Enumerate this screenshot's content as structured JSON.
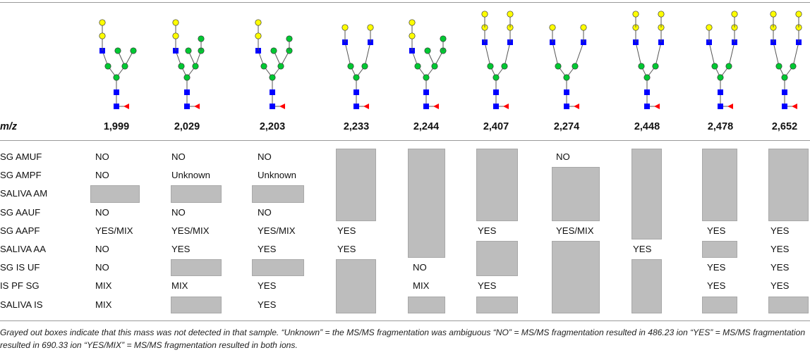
{
  "columns": [
    {
      "mz": "1,999",
      "glycan": "glycan-1999"
    },
    {
      "mz": "2,029",
      "glycan": "glycan-2029"
    },
    {
      "mz": "2,203",
      "glycan": "glycan-2203"
    },
    {
      "mz": "2,233",
      "glycan": "glycan-2233"
    },
    {
      "mz": "2,244",
      "glycan": "glycan-2244"
    },
    {
      "mz": "2,407",
      "glycan": "glycan-2407"
    },
    {
      "mz": "2,274",
      "glycan": "glycan-2274"
    },
    {
      "mz": "2,448",
      "glycan": "glycan-2448"
    },
    {
      "mz": "2,478",
      "glycan": "glycan-2478"
    },
    {
      "mz": "2,652",
      "glycan": "glycan-2652"
    }
  ],
  "header": {
    "mz_label": "m/z"
  },
  "rows": [
    {
      "label": "SG AMUF",
      "values": [
        "NO",
        "NO",
        "NO",
        null,
        null,
        null,
        "NO",
        null,
        null,
        null
      ]
    },
    {
      "label": "SG AMPF",
      "values": [
        "NO",
        "Unknown",
        "Unknown",
        null,
        null,
        null,
        null,
        null,
        null,
        null
      ]
    },
    {
      "label": "SALIVA AM",
      "values": [
        null,
        null,
        null,
        null,
        null,
        null,
        null,
        null,
        null,
        null
      ]
    },
    {
      "label": "SG AAUF",
      "values": [
        "NO",
        "NO",
        "NO",
        null,
        null,
        null,
        null,
        null,
        null,
        null
      ]
    },
    {
      "label": "SG AAPF",
      "values": [
        "YES/MIX",
        "YES/MIX",
        "YES/MIX",
        "YES",
        null,
        "YES",
        "YES/MIX",
        null,
        "YES",
        "YES"
      ]
    },
    {
      "label": "SALIVA AA",
      "values": [
        "NO",
        "YES",
        "YES",
        "YES",
        null,
        null,
        null,
        "YES",
        null,
        "YES"
      ]
    },
    {
      "label": "SG IS UF",
      "values": [
        "NO",
        null,
        null,
        null,
        "NO",
        null,
        null,
        null,
        "YES",
        "YES"
      ]
    },
    {
      "label": "IS PF SG",
      "values": [
        "MIX",
        "MIX",
        "YES",
        null,
        "MIX",
        "YES",
        null,
        null,
        "YES",
        "YES"
      ]
    },
    {
      "label": "SALIVA IS",
      "values": [
        "MIX",
        null,
        "YES",
        null,
        null,
        null,
        null,
        null,
        null,
        null
      ]
    }
  ],
  "not_detected": [
    {
      "col": 0,
      "from": 2,
      "to": 2
    },
    {
      "col": 1,
      "from": 2,
      "to": 2
    },
    {
      "col": 1,
      "from": 6,
      "to": 6
    },
    {
      "col": 1,
      "from": 8,
      "to": 8
    },
    {
      "col": 2,
      "from": 2,
      "to": 2
    },
    {
      "col": 2,
      "from": 6,
      "to": 6
    },
    {
      "col": 3,
      "from": 0,
      "to": 3
    },
    {
      "col": 3,
      "from": 6,
      "to": 8
    },
    {
      "col": 4,
      "from": 0,
      "to": 5
    },
    {
      "col": 4,
      "from": 8,
      "to": 8
    },
    {
      "col": 5,
      "from": 0,
      "to": 3
    },
    {
      "col": 5,
      "from": 5,
      "to": 6
    },
    {
      "col": 5,
      "from": 8,
      "to": 8
    },
    {
      "col": 6,
      "from": 1,
      "to": 3
    },
    {
      "col": 6,
      "from": 5,
      "to": 8
    },
    {
      "col": 7,
      "from": 0,
      "to": 4
    },
    {
      "col": 7,
      "from": 6,
      "to": 8
    },
    {
      "col": 8,
      "from": 0,
      "to": 3
    },
    {
      "col": 8,
      "from": 5,
      "to": 5
    },
    {
      "col": 8,
      "from": 8,
      "to": 8
    },
    {
      "col": 9,
      "from": 0,
      "to": 3
    },
    {
      "col": 9,
      "from": 8,
      "to": 8
    }
  ],
  "caption": "Grayed out boxes indicate that this mass was not detected in that sample. “Unknown” = the MS/MS fragmentation was ambiguous “NO” = MS/MS fragmentation resulted in 486.23 ion “YES” = MS/MS fragmentation resulted in 690.33 ion “YES/MIX” = MS/MS fragmentation resulted in both ions.",
  "colors": {
    "gray": "#bdbdbd",
    "galactose": "#ffff00",
    "mannose": "#00c832",
    "glcnac": "#0000ff",
    "fucose": "#ff0000"
  }
}
